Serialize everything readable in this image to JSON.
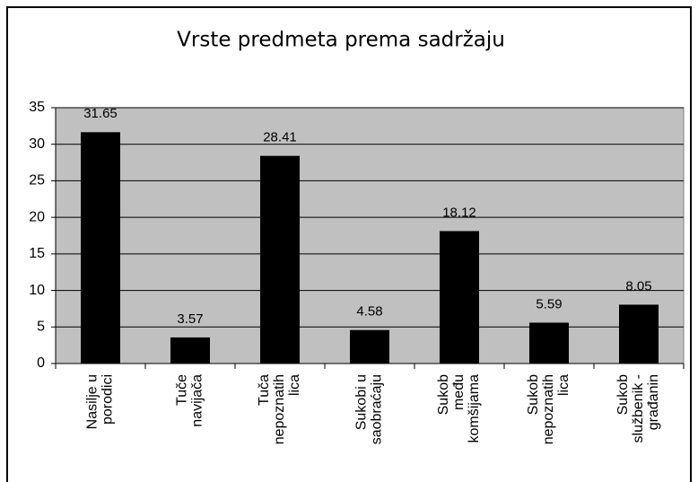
{
  "chart_data": {
    "type": "bar",
    "title": "Vrste predmeta prema sadržaju",
    "categories": [
      [
        "Nasilje u",
        "porodici"
      ],
      [
        "Tuče",
        "navijača"
      ],
      [
        "Tuča",
        "nepoznatih",
        "lica"
      ],
      [
        "Sukobi u",
        "saobraćaju"
      ],
      [
        "Sukob",
        "među",
        "komšijama"
      ],
      [
        "Sukob",
        "nepoznatih",
        "lica"
      ],
      [
        "Sukob",
        "službenik -",
        "građanin"
      ]
    ],
    "values": [
      31.65,
      3.57,
      28.41,
      4.58,
      18.12,
      5.59,
      8.05
    ],
    "color": "#000000",
    "plot_background": "#c0c0c0",
    "ylim": [
      0,
      35
    ],
    "yticks": [
      0,
      5,
      10,
      15,
      20,
      25,
      30,
      35
    ],
    "grid": true
  }
}
